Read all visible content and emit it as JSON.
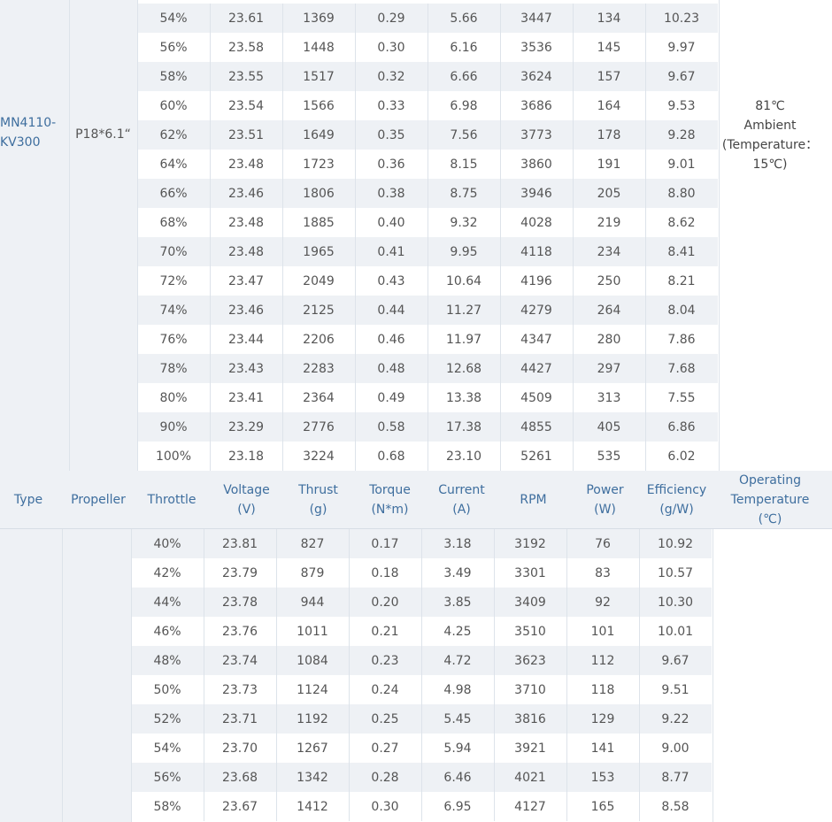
{
  "top_section": {
    "type": "MN4110-KV300",
    "propeller": "P18*6.1“",
    "temp_line1": "81℃",
    "temp_line2": "Ambient",
    "temp_line3": "(Temperature：",
    "temp_line4": "15℃)",
    "rows": [
      [
        "54%",
        "23.61",
        "1369",
        "0.29",
        "5.66",
        "3447",
        "134",
        "10.23"
      ],
      [
        "56%",
        "23.58",
        "1448",
        "0.30",
        "6.16",
        "3536",
        "145",
        "9.97"
      ],
      [
        "58%",
        "23.55",
        "1517",
        "0.32",
        "6.66",
        "3624",
        "157",
        "9.67"
      ],
      [
        "60%",
        "23.54",
        "1566",
        "0.33",
        "6.98",
        "3686",
        "164",
        "9.53"
      ],
      [
        "62%",
        "23.51",
        "1649",
        "0.35",
        "7.56",
        "3773",
        "178",
        "9.28"
      ],
      [
        "64%",
        "23.48",
        "1723",
        "0.36",
        "8.15",
        "3860",
        "191",
        "9.01"
      ],
      [
        "66%",
        "23.46",
        "1806",
        "0.38",
        "8.75",
        "3946",
        "205",
        "8.80"
      ],
      [
        "68%",
        "23.48",
        "1885",
        "0.40",
        "9.32",
        "4028",
        "219",
        "8.62"
      ],
      [
        "70%",
        "23.48",
        "1965",
        "0.41",
        "9.95",
        "4118",
        "234",
        "8.41"
      ],
      [
        "72%",
        "23.47",
        "2049",
        "0.43",
        "10.64",
        "4196",
        "250",
        "8.21"
      ],
      [
        "74%",
        "23.46",
        "2125",
        "0.44",
        "11.27",
        "4279",
        "264",
        "8.04"
      ],
      [
        "76%",
        "23.44",
        "2206",
        "0.46",
        "11.97",
        "4347",
        "280",
        "7.86"
      ],
      [
        "78%",
        "23.43",
        "2283",
        "0.48",
        "12.68",
        "4427",
        "297",
        "7.68"
      ],
      [
        "80%",
        "23.41",
        "2364",
        "0.49",
        "13.38",
        "4509",
        "313",
        "7.55"
      ],
      [
        "90%",
        "23.29",
        "2776",
        "0.58",
        "17.38",
        "4855",
        "405",
        "6.86"
      ],
      [
        "100%",
        "23.18",
        "3224",
        "0.68",
        "23.10",
        "5261",
        "535",
        "6.02"
      ]
    ]
  },
  "header": {
    "type": "Type",
    "propeller": "Propeller",
    "throttle": "Throttle",
    "voltage_1": "Voltage",
    "voltage_2": "(V)",
    "thrust_1": "Thrust",
    "thrust_2": "(g)",
    "torque_1": "Torque",
    "torque_2": "(N*m)",
    "current_1": "Current",
    "current_2": "(A)",
    "rpm": "RPM",
    "power_1": "Power",
    "power_2": "(W)",
    "efficiency_1": "Efficiency",
    "efficiency_2": "(g/W)",
    "optemp_1": "Operating",
    "optemp_2": "Temperature",
    "optemp_3": "(℃)"
  },
  "bottom_section": {
    "rows": [
      [
        "40%",
        "23.81",
        "827",
        "0.17",
        "3.18",
        "3192",
        "76",
        "10.92"
      ],
      [
        "42%",
        "23.79",
        "879",
        "0.18",
        "3.49",
        "3301",
        "83",
        "10.57"
      ],
      [
        "44%",
        "23.78",
        "944",
        "0.20",
        "3.85",
        "3409",
        "92",
        "10.30"
      ],
      [
        "46%",
        "23.76",
        "1011",
        "0.21",
        "4.25",
        "3510",
        "101",
        "10.01"
      ],
      [
        "48%",
        "23.74",
        "1084",
        "0.23",
        "4.72",
        "3623",
        "112",
        "9.67"
      ],
      [
        "50%",
        "23.73",
        "1124",
        "0.24",
        "4.98",
        "3710",
        "118",
        "9.51"
      ],
      [
        "52%",
        "23.71",
        "1192",
        "0.25",
        "5.45",
        "3816",
        "129",
        "9.22"
      ],
      [
        "54%",
        "23.70",
        "1267",
        "0.27",
        "5.94",
        "3921",
        "141",
        "9.00"
      ],
      [
        "56%",
        "23.68",
        "1342",
        "0.28",
        "6.46",
        "4021",
        "153",
        "8.77"
      ],
      [
        "58%",
        "23.67",
        "1412",
        "0.30",
        "6.95",
        "4127",
        "165",
        "8.58"
      ]
    ]
  },
  "colors": {
    "band": "#eef1f5",
    "label": "#3e6e9e",
    "text": "#555555",
    "line": "#dde3ea"
  }
}
